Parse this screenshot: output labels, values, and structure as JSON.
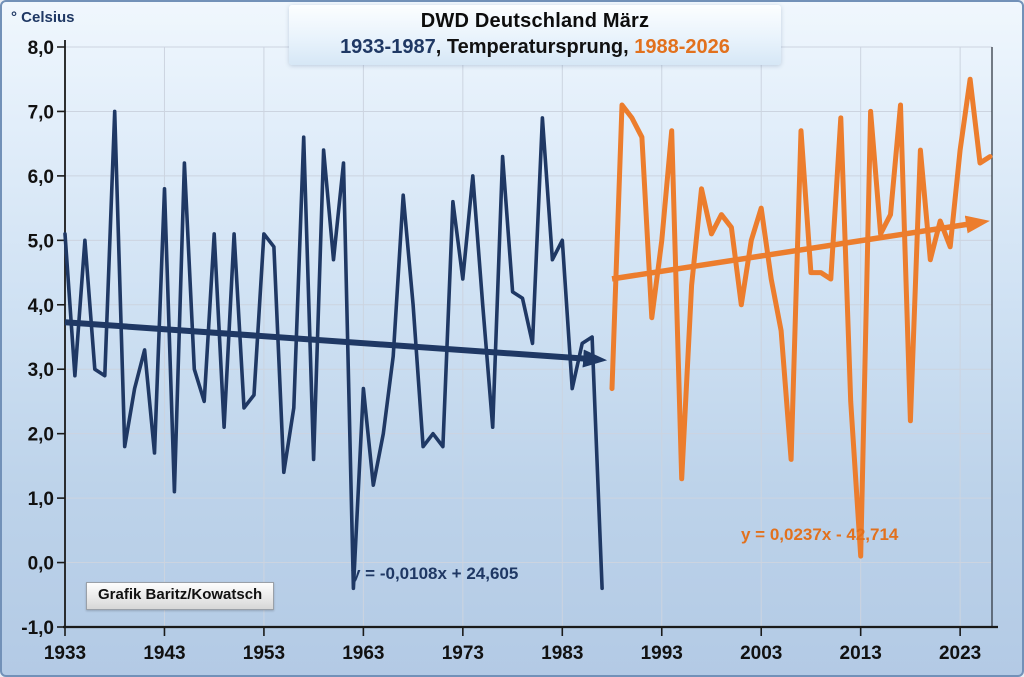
{
  "chart_data": {
    "type": "line",
    "title": "DWD Deutschland März",
    "subtitle": {
      "left": "1933-1987",
      "middle": ", Temperatursprung, ",
      "right": "1988-2026"
    },
    "ylabel": "° Celsius",
    "xlabel": "",
    "credit": "Grafik Baritz/Kowatsch",
    "ylim": [
      -1.0,
      8.0
    ],
    "xlim": [
      1933,
      2027
    ],
    "grid": true,
    "legend_position": "subtitle (colored year ranges act as legend)",
    "x_ticks": [
      1933,
      1943,
      1953,
      1963,
      1973,
      1983,
      1993,
      2003,
      2013,
      2023
    ],
    "x_tick_labels": [
      "1933",
      "1943",
      "1953",
      "1963",
      "1973",
      "1983",
      "1993",
      "2003",
      "2013",
      "2023"
    ],
    "y_ticks": [
      8,
      7,
      6,
      5,
      4,
      3,
      2,
      1,
      0,
      -1
    ],
    "y_tick_labels": [
      "8,0",
      "7,0",
      "6,0",
      "5,0",
      "4,0",
      "3,0",
      "2,0",
      "1,0",
      "0,0",
      "-1,0"
    ],
    "series": [
      {
        "name": "1933-1987",
        "color": "#1f3864",
        "line_width": 3.6,
        "start_year": 1933,
        "values": [
          5.1,
          2.9,
          5.0,
          3.0,
          2.9,
          7.0,
          1.8,
          2.7,
          3.3,
          1.7,
          5.8,
          1.1,
          6.2,
          3.0,
          2.5,
          5.1,
          2.1,
          5.1,
          2.4,
          2.6,
          5.1,
          4.9,
          1.4,
          2.4,
          6.6,
          1.6,
          6.4,
          4.7,
          6.2,
          -0.4,
          2.7,
          1.2,
          2.0,
          3.2,
          5.7,
          4.0,
          1.8,
          2.0,
          1.8,
          5.6,
          4.4,
          6.0,
          4.0,
          2.1,
          6.3,
          4.2,
          4.1,
          3.4,
          6.9,
          4.7,
          5.0,
          2.7,
          3.4,
          3.5,
          -0.4
        ]
      },
      {
        "name": "1988-2026",
        "color": "#ec7d2d",
        "line_width": 5,
        "start_year": 1988,
        "values": [
          2.7,
          7.1,
          6.9,
          6.6,
          3.8,
          5.0,
          6.7,
          1.3,
          4.3,
          5.8,
          5.1,
          5.4,
          5.2,
          4.0,
          5.0,
          5.5,
          4.4,
          3.6,
          1.6,
          6.7,
          4.5,
          4.5,
          4.4,
          6.9,
          2.5,
          0.1,
          7.0,
          5.1,
          5.4,
          7.1,
          2.2,
          6.4,
          4.7,
          5.3,
          4.9,
          6.4,
          7.5,
          6.2,
          6.3
        ]
      }
    ],
    "trendlines": [
      {
        "label": "y = -0,0108x + 24,605",
        "slope": -0.0108,
        "intercept": 24.605,
        "color": "#1f3864",
        "x_start": 1933,
        "x_end": 1986,
        "line_width": 6
      },
      {
        "label": "y = 0,0237x - 42,714",
        "slope": 0.0237,
        "intercept": -42.714,
        "color": "#ec7d2d",
        "x_start": 1988,
        "x_end": 2024.5,
        "line_width": 5.5
      }
    ]
  }
}
